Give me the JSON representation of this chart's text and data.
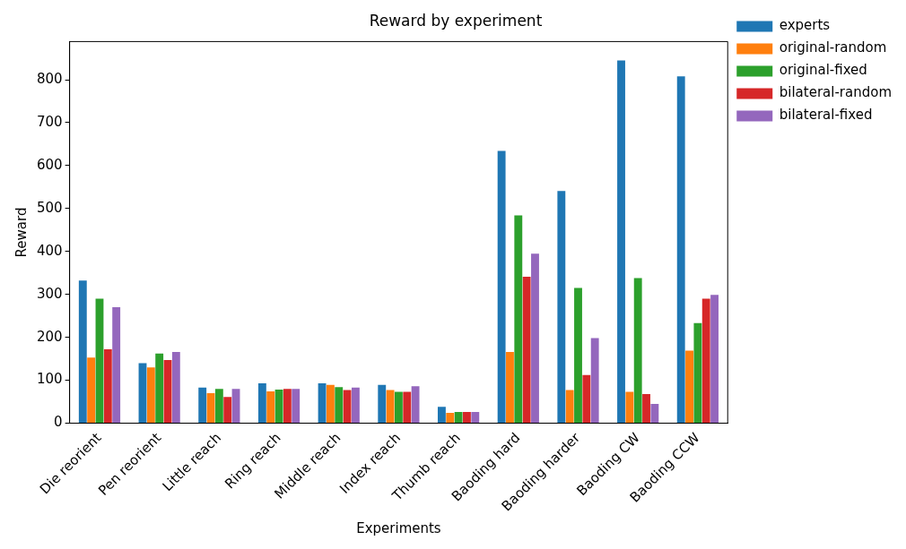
{
  "chart_data": {
    "type": "bar",
    "title": "Reward by experiment",
    "xlabel": "Experiments",
    "ylabel": "Reward",
    "categories": [
      "Die reorient",
      "Pen reorient",
      "Little reach",
      "Ring reach",
      "Middle reach",
      "Index reach",
      "Thumb reach",
      "Baoding hard",
      "Baoding harder",
      "Baoding CW",
      "Baoding CCW"
    ],
    "series": [
      {
        "name": "experts",
        "color": "#1f77b4",
        "values": [
          332,
          140,
          83,
          93,
          93,
          89,
          38,
          634,
          541,
          845,
          808
        ]
      },
      {
        "name": "original-random",
        "color": "#ff7f0e",
        "values": [
          153,
          130,
          70,
          74,
          89,
          77,
          24,
          166,
          77,
          73,
          169
        ]
      },
      {
        "name": "original-fixed",
        "color": "#2ca02c",
        "values": [
          290,
          162,
          80,
          78,
          84,
          73,
          26,
          484,
          315,
          338,
          233
        ]
      },
      {
        "name": "bilateral-random",
        "color": "#d62728",
        "values": [
          172,
          147,
          61,
          80,
          77,
          73,
          26,
          341,
          112,
          68,
          290
        ]
      },
      {
        "name": "bilateral-fixed",
        "color": "#9467bd",
        "values": [
          270,
          166,
          80,
          80,
          83,
          86,
          26,
          395,
          198,
          45,
          299
        ]
      }
    ],
    "ylim": [
      0,
      889
    ],
    "yticks": [
      0,
      100,
      200,
      300,
      400,
      500,
      600,
      700,
      800
    ],
    "grid": false,
    "legend": "top right"
  }
}
